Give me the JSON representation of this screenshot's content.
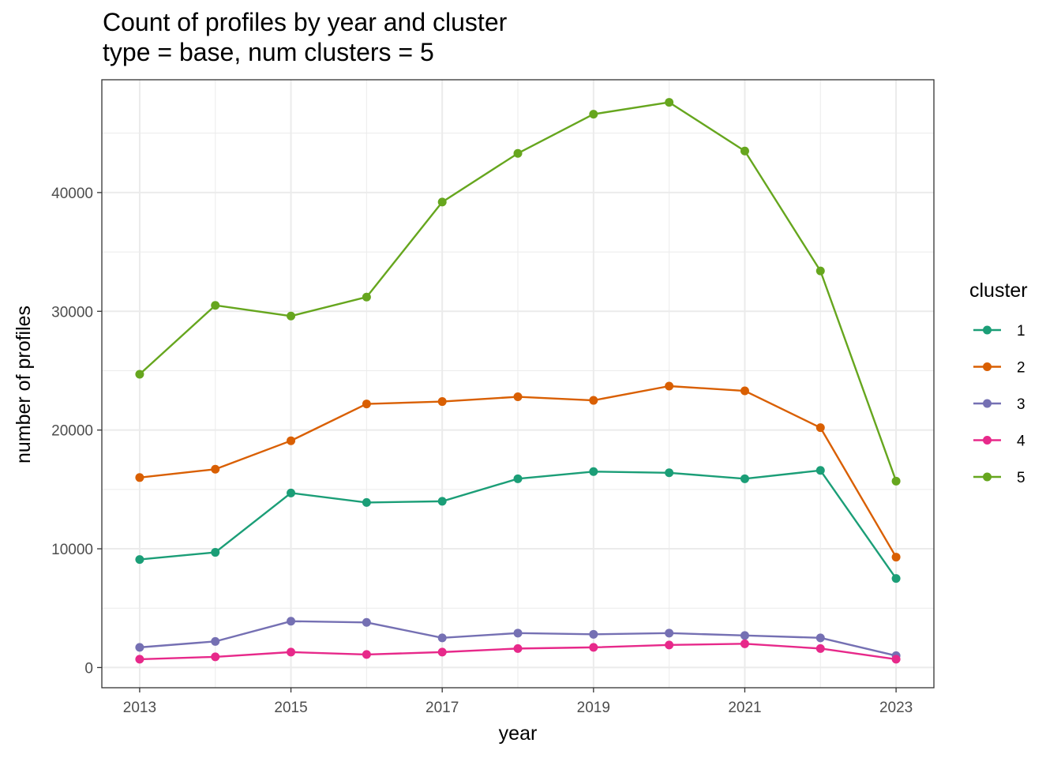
{
  "chart_data": {
    "type": "line",
    "title": "Count of profiles by year and cluster",
    "subtitle": "type = base, num clusters = 5",
    "xlabel": "year",
    "ylabel": "number of profiles",
    "legend_title": "cluster",
    "legend_position": "right",
    "grid": true,
    "x": [
      2013,
      2014,
      2015,
      2016,
      2017,
      2018,
      2019,
      2020,
      2021,
      2022,
      2023
    ],
    "x_ticks": [
      "2013",
      "2015",
      "2017",
      "2019",
      "2021",
      "2023"
    ],
    "y_ticks": [
      "0",
      "10000",
      "20000",
      "30000",
      "40000"
    ],
    "xlim": [
      2012.5,
      2023.5
    ],
    "ylim": [
      -1700,
      49500
    ],
    "series": [
      {
        "name": "1",
        "color": "#1b9e77",
        "values": [
          9100,
          9700,
          14700,
          13900,
          14000,
          15900,
          16500,
          16400,
          15900,
          16600,
          7500
        ]
      },
      {
        "name": "2",
        "color": "#d95f02",
        "values": [
          16000,
          16700,
          19100,
          22200,
          22400,
          22800,
          22500,
          23700,
          23300,
          20200,
          9300
        ]
      },
      {
        "name": "3",
        "color": "#7570b3",
        "values": [
          1700,
          2200,
          3900,
          3800,
          2500,
          2900,
          2800,
          2900,
          2700,
          2500,
          1000
        ]
      },
      {
        "name": "4",
        "color": "#e7298a",
        "values": [
          700,
          900,
          1300,
          1100,
          1300,
          1600,
          1700,
          1900,
          2000,
          1600,
          700
        ]
      },
      {
        "name": "5",
        "color": "#66a61e",
        "values": [
          24700,
          30500,
          29600,
          31200,
          39200,
          43300,
          46600,
          47600,
          43500,
          33400,
          15700
        ]
      }
    ]
  }
}
